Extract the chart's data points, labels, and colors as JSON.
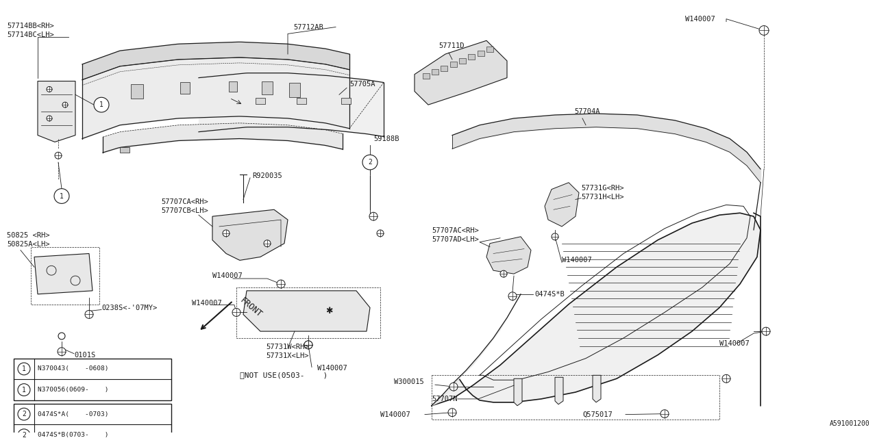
{
  "bg_color": "#ffffff",
  "line_color": "#1a1a1a",
  "fig_id": "A591001200",
  "legend1": {
    "rows": [
      "N370043(    -0608)",
      "N370056(0609-    )"
    ]
  },
  "legend2": {
    "rows": [
      "0474S*A(    -0703)",
      "0474S*B(0703-    )"
    ]
  },
  "note": "※NOT USE(0503-    )"
}
